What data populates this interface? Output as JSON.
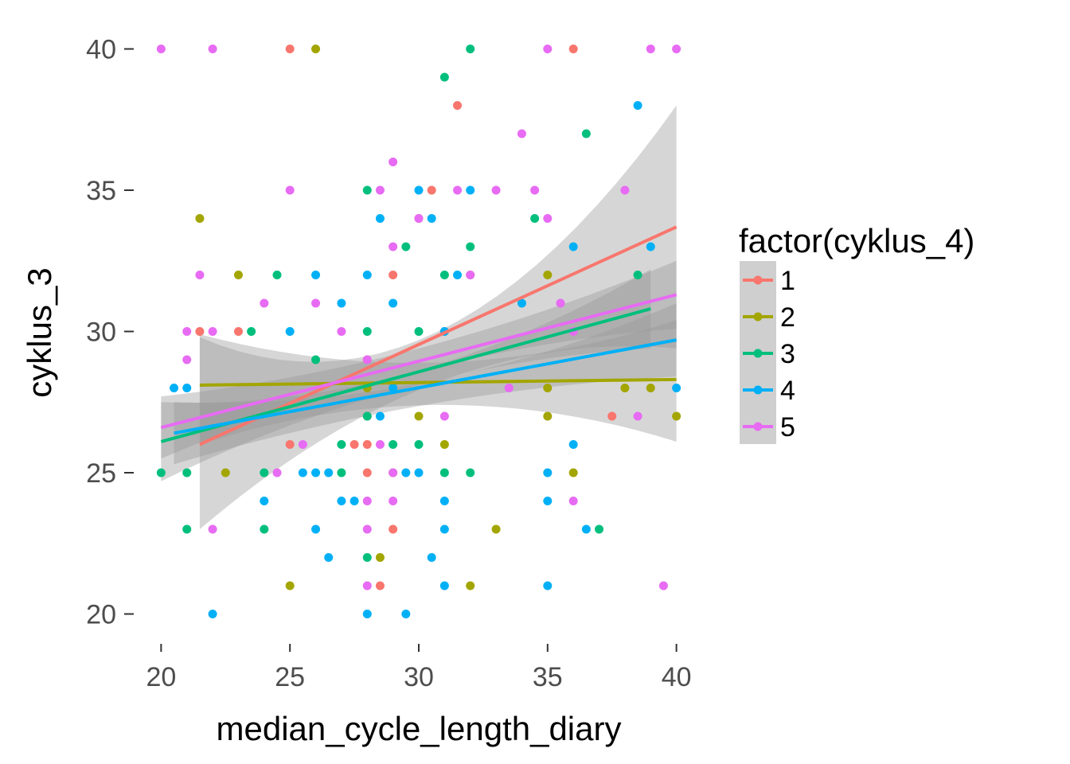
{
  "chart_data": {
    "type": "scatter",
    "xlabel": "median_cycle_length_diary",
    "ylabel": "cyklus_3",
    "xlim": [
      19,
      41
    ],
    "ylim": [
      19,
      41
    ],
    "x_ticks": [
      20,
      25,
      30,
      35,
      40
    ],
    "y_ticks": [
      20,
      25,
      30,
      35,
      40
    ],
    "x_tick_labels": [
      "20",
      "25",
      "30",
      "35",
      "40"
    ],
    "y_tick_labels": [
      "20",
      "25",
      "30",
      "35",
      "40"
    ],
    "grid": false,
    "legend": {
      "title": "factor(cyklus_4)",
      "position": "right",
      "entries": [
        "1",
        "2",
        "3",
        "4",
        "5"
      ]
    },
    "series": [
      {
        "name": "1",
        "color": "#F8766D",
        "points": [
          [
            25,
            40
          ],
          [
            36,
            40
          ],
          [
            31.5,
            38
          ],
          [
            30.5,
            35
          ],
          [
            21.5,
            30
          ],
          [
            23,
            30
          ],
          [
            29,
            32
          ],
          [
            31,
            30
          ],
          [
            32,
            32
          ],
          [
            28,
            27
          ],
          [
            28,
            26
          ],
          [
            25,
            26
          ],
          [
            27.5,
            26
          ],
          [
            28,
            25
          ],
          [
            28.5,
            21
          ],
          [
            29,
            23
          ],
          [
            37.5,
            27
          ],
          [
            28,
            29
          ],
          [
            30,
            34
          ]
        ],
        "fit": [
          [
            21.5,
            26.0
          ],
          [
            40,
            33.7
          ]
        ],
        "band_x": [
          21.5,
          30.5,
          40
        ],
        "band_lower": [
          23.0,
          28.2,
          29.4
        ],
        "band_upper": [
          29.8,
          30.0,
          38.0
        ]
      },
      {
        "name": "2",
        "color": "#A3A500",
        "points": [
          [
            26,
            40
          ],
          [
            21.5,
            34
          ],
          [
            23,
            32
          ],
          [
            22.5,
            25
          ],
          [
            25,
            21
          ],
          [
            28.5,
            22
          ],
          [
            30,
            27
          ],
          [
            31,
            26
          ],
          [
            33,
            23
          ],
          [
            35,
            32
          ],
          [
            35,
            28
          ],
          [
            35,
            27
          ],
          [
            36,
            25
          ],
          [
            38,
            28
          ],
          [
            39,
            28
          ],
          [
            40,
            27
          ],
          [
            32,
            21
          ],
          [
            28,
            28
          ],
          [
            29,
            25
          ]
        ],
        "fit": [
          [
            21.5,
            28.1
          ],
          [
            40,
            28.3
          ]
        ],
        "band_x": [
          21.5,
          30.5,
          40
        ],
        "band_lower": [
          26.0,
          27.4,
          26.1
        ],
        "band_upper": [
          29.9,
          28.9,
          30.4
        ]
      },
      {
        "name": "3",
        "color": "#00BF7D",
        "points": [
          [
            32,
            40
          ],
          [
            31,
            39
          ],
          [
            36.5,
            37
          ],
          [
            34.5,
            34
          ],
          [
            28,
            35
          ],
          [
            29.5,
            33
          ],
          [
            32,
            33
          ],
          [
            24.5,
            32
          ],
          [
            31,
            32
          ],
          [
            23.5,
            30
          ],
          [
            26,
            29
          ],
          [
            27,
            26
          ],
          [
            28,
            22
          ],
          [
            28,
            27
          ],
          [
            29,
            26
          ],
          [
            24,
            25
          ],
          [
            24,
            23
          ],
          [
            21,
            23
          ],
          [
            20,
            25
          ],
          [
            21,
            25
          ],
          [
            27,
            25
          ],
          [
            30,
            26
          ],
          [
            31,
            25
          ],
          [
            32,
            25
          ],
          [
            37,
            23
          ],
          [
            38.5,
            32
          ],
          [
            28,
            30
          ],
          [
            30,
            30
          ]
        ],
        "fit": [
          [
            20,
            26.1
          ],
          [
            39,
            30.8
          ]
        ],
        "band_x": [
          20,
          29.5,
          39
        ],
        "band_lower": [
          24.7,
          28.0,
          29.4
        ],
        "band_upper": [
          27.5,
          28.5,
          32.2
        ]
      },
      {
        "name": "4",
        "color": "#00B0F6",
        "points": [
          [
            20.5,
            28
          ],
          [
            21,
            28
          ],
          [
            22,
            20
          ],
          [
            25,
            30
          ],
          [
            26,
            32
          ],
          [
            27,
            31
          ],
          [
            28,
            32
          ],
          [
            29,
            31
          ],
          [
            28.5,
            34
          ],
          [
            30,
            35
          ],
          [
            30.5,
            34
          ],
          [
            32,
            35
          ],
          [
            31.5,
            32
          ],
          [
            34,
            31
          ],
          [
            36,
            33
          ],
          [
            38.5,
            38
          ],
          [
            39,
            33
          ],
          [
            40,
            28
          ],
          [
            36,
            26
          ],
          [
            35,
            25
          ],
          [
            35,
            24
          ],
          [
            35,
            21
          ],
          [
            36.5,
            23
          ],
          [
            29.5,
            20
          ],
          [
            28,
            20
          ],
          [
            26.5,
            22
          ],
          [
            31,
            21
          ],
          [
            30.5,
            22
          ],
          [
            31,
            23
          ],
          [
            31,
            24
          ],
          [
            30,
            25
          ],
          [
            29.5,
            25
          ],
          [
            28.5,
            27
          ],
          [
            26,
            25
          ],
          [
            26.5,
            25
          ],
          [
            27,
            24
          ],
          [
            27.5,
            24
          ],
          [
            25.5,
            25
          ],
          [
            24,
            24
          ],
          [
            26,
            23
          ],
          [
            31,
            30
          ],
          [
            29,
            28
          ]
        ],
        "fit": [
          [
            20.5,
            26.4
          ],
          [
            40,
            29.7
          ]
        ],
        "band_x": [
          20.5,
          30,
          40
        ],
        "band_lower": [
          25.3,
          27.4,
          28.4
        ],
        "band_upper": [
          27.5,
          28.2,
          31.0
        ]
      },
      {
        "name": "5",
        "color": "#E76BF3",
        "points": [
          [
            20,
            40
          ],
          [
            22,
            40
          ],
          [
            35,
            40
          ],
          [
            39,
            40
          ],
          [
            40,
            40
          ],
          [
            29,
            36
          ],
          [
            34,
            37
          ],
          [
            25,
            35
          ],
          [
            28.5,
            35
          ],
          [
            31.5,
            35
          ],
          [
            33,
            35
          ],
          [
            34.5,
            35
          ],
          [
            35,
            34
          ],
          [
            38,
            35
          ],
          [
            32,
            32
          ],
          [
            21.5,
            32
          ],
          [
            24,
            31
          ],
          [
            26,
            31
          ],
          [
            21,
            30
          ],
          [
            22,
            30
          ],
          [
            21,
            29
          ],
          [
            22,
            23
          ],
          [
            27,
            30
          ],
          [
            28,
            29
          ],
          [
            28,
            23
          ],
          [
            28,
            24
          ],
          [
            28,
            21
          ],
          [
            29,
            24
          ],
          [
            33.5,
            28
          ],
          [
            36,
            24
          ],
          [
            39.5,
            21
          ],
          [
            38.5,
            27
          ],
          [
            36,
            30
          ],
          [
            35.5,
            31
          ],
          [
            31,
            27
          ],
          [
            28.5,
            26
          ],
          [
            29,
            25
          ],
          [
            25.5,
            26
          ],
          [
            24.5,
            25
          ],
          [
            30,
            34
          ],
          [
            29,
            33
          ]
        ],
        "fit": [
          [
            20,
            26.6
          ],
          [
            40,
            31.3
          ]
        ],
        "band_x": [
          20,
          30,
          40
        ],
        "band_lower": [
          25.5,
          28.6,
          30.1
        ],
        "band_upper": [
          27.7,
          29.4,
          32.5
        ]
      }
    ]
  }
}
